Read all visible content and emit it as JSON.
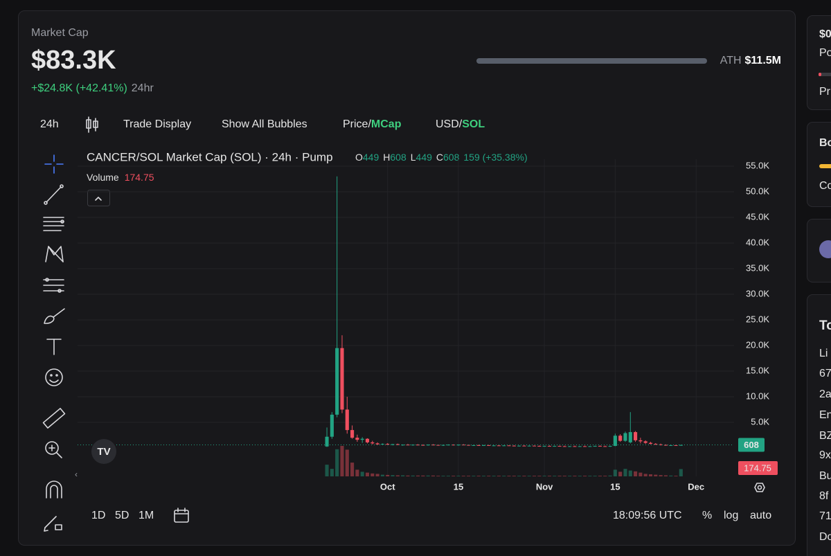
{
  "header": {
    "label": "Market Cap",
    "value": "$83.3K",
    "change": "+$24.8K (+42.41%)",
    "period": "24hr",
    "ath_label": "ATH",
    "ath_value": "$11.5M"
  },
  "toolbar": {
    "interval": "24h",
    "trade_display": "Trade Display",
    "bubbles": "Show All Bubbles",
    "price": "Price/",
    "mcap": "MCap",
    "usd": "USD/",
    "sol": "SOL"
  },
  "bottom_bar": {
    "ranges": [
      "1D",
      "5D",
      "1M"
    ],
    "time": "18:09:56 UTC",
    "percent": "%",
    "log": "log",
    "auto": "auto"
  },
  "right_panel": {
    "items": [
      "$0",
      "Po",
      "Pr",
      "Bo",
      "Co",
      "To",
      "Li",
      "67",
      "2a",
      "En",
      "BZ",
      "9x",
      "Bu",
      "8f",
      "71",
      "Do"
    ]
  },
  "chart_data": {
    "type": "candlestick",
    "title": "CANCER/SOL Market Cap (SOL) · 24h · Pump",
    "ohlc_letters": [
      "O",
      "H",
      "L",
      "C"
    ],
    "change_label": "159 (+35.38%)",
    "volume_label": "Volume",
    "up_color": "#22a383",
    "down_color": "#ef4f5f",
    "xlim": [
      -49.3,
      80.5
    ],
    "xticks": [
      {
        "value": 12,
        "label": "Oct"
      },
      {
        "value": 26,
        "label": "15"
      },
      {
        "value": 43,
        "label": "Nov"
      },
      {
        "value": 57,
        "label": "15"
      },
      {
        "value": 73,
        "label": "Dec"
      }
    ],
    "ylim": [
      -5540,
      56350
    ],
    "yticks": [
      {
        "value": 5000,
        "label": "5.0K"
      },
      {
        "value": 10000,
        "label": "10.0K"
      },
      {
        "value": 15000,
        "label": "15.0K"
      },
      {
        "value": 20000,
        "label": "20.0K"
      },
      {
        "value": 25000,
        "label": "25.0K"
      },
      {
        "value": 30000,
        "label": "30.0K"
      },
      {
        "value": 35000,
        "label": "35.0K"
      },
      {
        "value": 40000,
        "label": "40.0K"
      },
      {
        "value": 45000,
        "label": "45.0K"
      },
      {
        "value": 50000,
        "label": "50.0K"
      },
      {
        "value": 55000,
        "label": "55.0K"
      }
    ],
    "grid": true,
    "open": [
      300,
      2200,
      6500,
      19500,
      7500,
      3500,
      2000,
      1600,
      1800,
      1100,
      900,
      700,
      800,
      650,
      750,
      600,
      650,
      550,
      650,
      600,
      550,
      650,
      600,
      500,
      600,
      650,
      550,
      650,
      600,
      500,
      550,
      500,
      550,
      450,
      500,
      450,
      500,
      450,
      400,
      450,
      400,
      450,
      400,
      350,
      400,
      350,
      400,
      350,
      300,
      350,
      300,
      350,
      300,
      350,
      400,
      350,
      300,
      400,
      2400,
      1400,
      1100,
      3100,
      1500,
      1300,
      1000,
      800,
      700,
      600,
      500,
      550,
      449
    ],
    "high": [
      4000,
      7000,
      53000,
      22000,
      10000,
      4400,
      2600,
      2100,
      1900,
      1400,
      1100,
      900,
      950,
      800,
      850,
      700,
      800,
      700,
      750,
      700,
      700,
      750,
      650,
      650,
      700,
      700,
      700,
      750,
      650,
      600,
      650,
      600,
      600,
      550,
      600,
      550,
      550,
      550,
      500,
      550,
      500,
      500,
      500,
      450,
      500,
      450,
      450,
      450,
      400,
      450,
      400,
      450,
      400,
      450,
      500,
      450,
      450,
      2800,
      2700,
      3200,
      7000,
      3300,
      2000,
      1500,
      1200,
      950,
      850,
      700,
      650,
      600,
      608
    ],
    "low": [
      200,
      1800,
      6000,
      6800,
      2800,
      1800,
      1200,
      1000,
      900,
      700,
      600,
      550,
      600,
      500,
      550,
      450,
      500,
      450,
      500,
      450,
      450,
      500,
      450,
      400,
      500,
      500,
      450,
      550,
      450,
      400,
      450,
      400,
      450,
      350,
      400,
      350,
      400,
      350,
      300,
      350,
      300,
      350,
      300,
      250,
      300,
      250,
      300,
      250,
      200,
      250,
      200,
      250,
      200,
      250,
      300,
      250,
      200,
      350,
      1200,
      1200,
      900,
      1200,
      900,
      800,
      700,
      600,
      500,
      450,
      400,
      420,
      449
    ],
    "close": [
      2200,
      6500,
      19500,
      7500,
      3500,
      2000,
      1600,
      1800,
      1100,
      900,
      700,
      800,
      650,
      750,
      600,
      650,
      550,
      650,
      600,
      550,
      650,
      600,
      500,
      600,
      650,
      550,
      650,
      600,
      500,
      550,
      500,
      550,
      450,
      500,
      450,
      500,
      450,
      400,
      450,
      400,
      450,
      400,
      350,
      400,
      350,
      400,
      350,
      300,
      350,
      300,
      350,
      300,
      350,
      400,
      350,
      300,
      400,
      2400,
      1400,
      2900,
      3100,
      1500,
      1300,
      1000,
      800,
      700,
      600,
      500,
      550,
      449,
      608
    ],
    "volume": [
      280,
      180,
      650,
      730,
      640,
      330,
      160,
      110,
      90,
      70,
      60,
      40,
      35,
      30,
      25,
      25,
      20,
      20,
      20,
      20,
      20,
      20,
      15,
      15,
      15,
      15,
      15,
      15,
      15,
      15,
      15,
      15,
      15,
      15,
      15,
      15,
      15,
      15,
      15,
      15,
      15,
      15,
      15,
      15,
      15,
      15,
      15,
      15,
      15,
      15,
      15,
      15,
      15,
      15,
      15,
      15,
      20,
      160,
      110,
      180,
      140,
      120,
      90,
      60,
      50,
      40,
      30,
      25,
      20,
      15,
      174.75
    ]
  }
}
